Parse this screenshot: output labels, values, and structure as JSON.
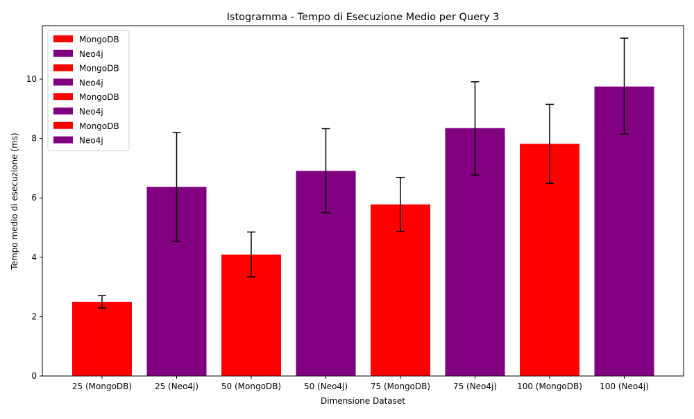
{
  "chart_data": {
    "type": "bar",
    "title": "Istogramma - Tempo di Esecuzione Medio per Query 3",
    "xlabel": "Dimensione Dataset",
    "ylabel": "Tempo medio di esecuzione (ms)",
    "ylim": [
      0,
      11.8
    ],
    "yticks": [
      0,
      2,
      4,
      6,
      8,
      10
    ],
    "ytick_labels": [
      "0",
      "2",
      "4",
      "6",
      "8",
      "10"
    ],
    "grid": false,
    "legend_position": "top-left",
    "colors": {
      "MongoDB": "#ff0000",
      "Neo4j": "#800080",
      "error_bar": "#000000"
    },
    "categories": [
      "25 (MongoDB)",
      "25 (Neo4j)",
      "50 (MongoDB)",
      "50 (Neo4j)",
      "75 (MongoDB)",
      "75 (Neo4j)",
      "100 (MongoDB)",
      "100 (Neo4j)"
    ],
    "series_of_category": [
      "MongoDB",
      "Neo4j",
      "MongoDB",
      "Neo4j",
      "MongoDB",
      "Neo4j",
      "MongoDB",
      "Neo4j"
    ],
    "values": [
      2.5,
      6.37,
      4.09,
      6.91,
      5.78,
      8.35,
      7.82,
      9.75
    ],
    "error_low": [
      2.29,
      4.53,
      3.34,
      5.5,
      4.87,
      6.77,
      6.49,
      8.15
    ],
    "error_high": [
      2.71,
      8.2,
      4.85,
      8.33,
      6.69,
      9.91,
      9.15,
      11.38
    ],
    "legend": [
      "MongoDB",
      "Neo4j",
      "MongoDB",
      "Neo4j",
      "MongoDB",
      "Neo4j",
      "MongoDB",
      "Neo4j"
    ]
  }
}
